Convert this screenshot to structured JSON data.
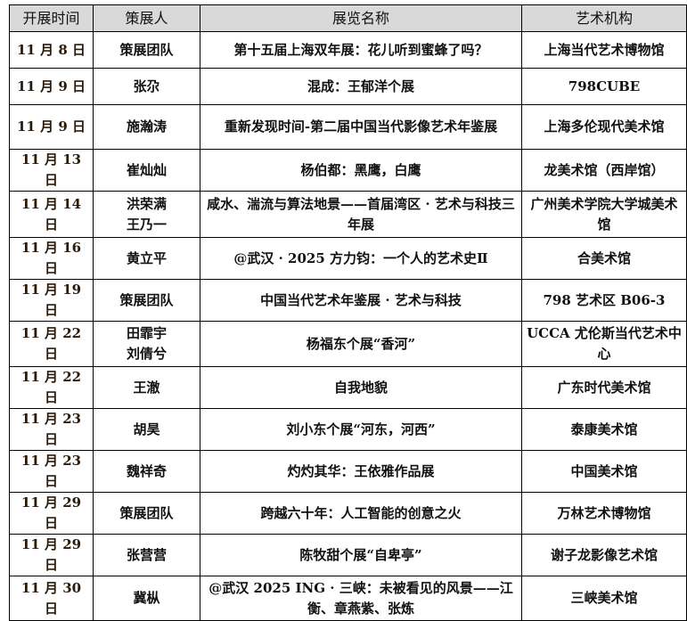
{
  "headers": [
    "开展时间",
    "策展人",
    "展览名称",
    "艺术机构"
  ],
  "rows": [
    {
      "date": "11 月 8 日",
      "curator": "策展团队",
      "title": "第十五届上海双年展：花儿听到蜜蜂了吗？",
      "venue": "上海当代艺术博物馆"
    },
    {
      "date": "11 月 9 日",
      "curator": "张尕",
      "title": "混成：王郁洋个展",
      "venue": "798CUBE"
    },
    {
      "date": "11 月 9 日",
      "curator": "施瀚涛",
      "title": "重新发现时间-第二届中国当代影像艺术年鉴展",
      "venue": "上海多伦现代美术馆"
    },
    {
      "date": "11 月 13 日",
      "curator": "崔灿灿",
      "title": "杨伯都：黑鹰，白鹰",
      "venue": "龙美术馆（西岸馆）"
    },
    {
      "date": "11 月 14 日",
      "curator": "洪荣满 王乃一",
      "title": "咸水、湍流与算法地景——首届湾区 · 艺术与科技三年展",
      "venue": "广州美术学院大学城美术馆"
    },
    {
      "date": "11 月 16 日",
      "curator": "黄立平",
      "title": "@武汉 · 2025 方力钧：一个人的艺术史Ⅱ",
      "venue": "合美术馆"
    },
    {
      "date": "11 月 19 日",
      "curator": "策展团队",
      "title": "中国当代艺术年鉴展 · 艺术与科技",
      "venue": "798 艺术区 B06-3"
    },
    {
      "date": "11 月 22 日",
      "curator": "田霏宇 刘倩兮",
      "title": "杨福东个展“香河”",
      "venue": "UCCA 尤伦斯当代艺术中心"
    },
    {
      "date": "11 月 22 日",
      "curator": "王澈",
      "title": "自我地貌",
      "venue": "广东时代美术馆"
    },
    {
      "date": "11 月 23 日",
      "curator": "胡昊",
      "title": "刘小东个展“河东，河西”",
      "venue": "泰康美术馆"
    },
    {
      "date": "11 月 23 日",
      "curator": "魏祥奇",
      "title": "灼灼其华：王依雅作品展",
      "venue": "中国美术馆"
    },
    {
      "date": "11 月 29 日",
      "curator": "策展团队",
      "title": "跨越六十年：人工智能的创意之火",
      "venue": "万林艺术博物馆"
    },
    {
      "date": "11 月 29 日",
      "curator": "张营营",
      "title": "陈牧甜个展“自卑亭”",
      "venue": "谢子龙影像艺术馆"
    },
    {
      "date": "11 月 30 日",
      "curator": "冀枞",
      "title": "@武汉 2025 ING · 三峡：未被看见的风景——江衡、章燕紫、张炼",
      "venue": "三峡美术馆"
    }
  ]
}
